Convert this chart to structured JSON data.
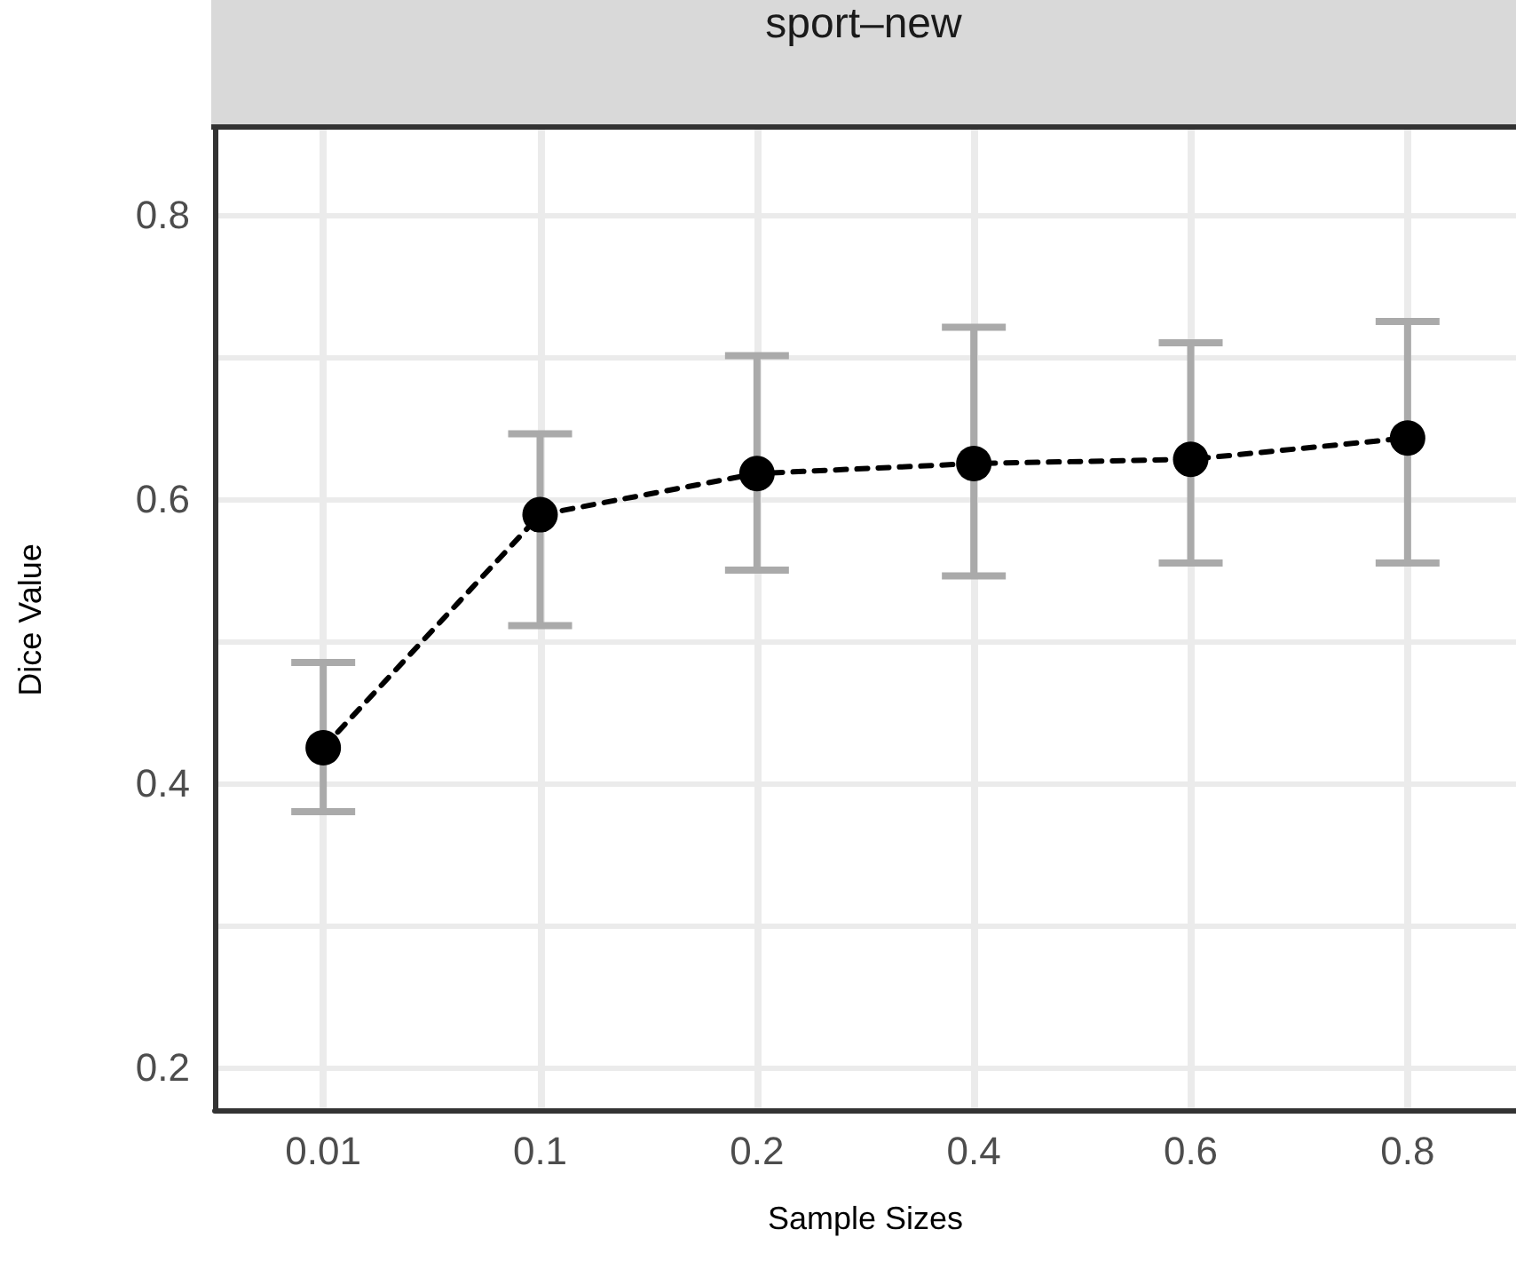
{
  "chart_data": {
    "type": "line",
    "title": "sport–new",
    "xlabel": "Sample Sizes",
    "ylabel": "Dice Value",
    "categories": [
      "0.01",
      "0.1",
      "0.2",
      "0.4",
      "0.6",
      "0.8"
    ],
    "series": [
      {
        "color": "#000000",
        "values": [
          0.425,
          0.589,
          0.618,
          0.625,
          0.628,
          0.643
        ],
        "errors": [
          [
            0.38,
            0.485
          ],
          [
            0.511,
            0.646
          ],
          [
            0.55,
            0.701
          ],
          [
            0.546,
            0.721
          ],
          [
            0.555,
            0.71
          ],
          [
            0.555,
            0.725
          ]
        ]
      }
    ],
    "ylim": [
      0.17,
      0.86
    ],
    "yticks": [
      0.2,
      {
        "value": 0.3,
        "label": null
      },
      0.4,
      {
        "value": 0.5,
        "label": null
      },
      0.6,
      {
        "value": 0.7,
        "label": null
      },
      0.8
    ],
    "grid": true,
    "marker": "circle",
    "line_style": "dashed"
  }
}
